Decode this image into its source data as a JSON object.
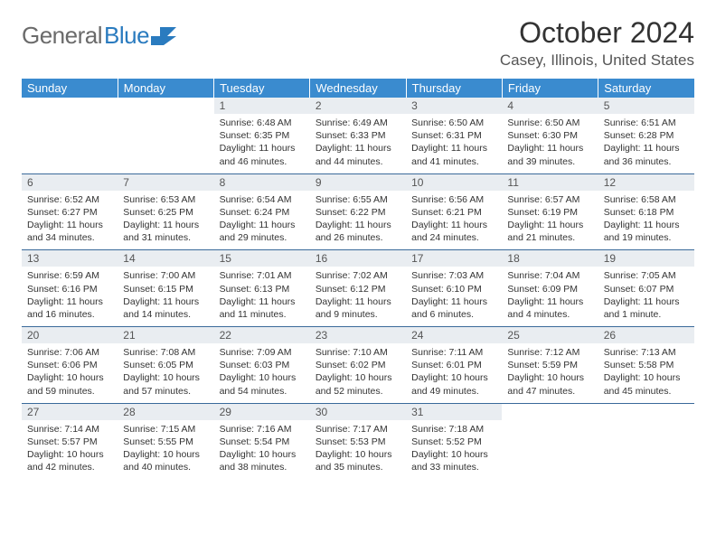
{
  "brand": {
    "name_part1": "General",
    "name_part2": "Blue"
  },
  "title": "October 2024",
  "location": "Casey, Illinois, United States",
  "colors": {
    "header_bg": "#3a8bcf",
    "header_text": "#ffffff",
    "daynum_bg": "#e9edf1",
    "row_border": "#3a6a9a",
    "logo_gray": "#6b6b6b",
    "logo_blue": "#2a7bbf",
    "text": "#333333"
  },
  "day_headers": [
    "Sunday",
    "Monday",
    "Tuesday",
    "Wednesday",
    "Thursday",
    "Friday",
    "Saturday"
  ],
  "weeks": [
    [
      {
        "empty": true
      },
      {
        "empty": true
      },
      {
        "num": "1",
        "sunrise": "Sunrise: 6:48 AM",
        "sunset": "Sunset: 6:35 PM",
        "daylight": "Daylight: 11 hours and 46 minutes."
      },
      {
        "num": "2",
        "sunrise": "Sunrise: 6:49 AM",
        "sunset": "Sunset: 6:33 PM",
        "daylight": "Daylight: 11 hours and 44 minutes."
      },
      {
        "num": "3",
        "sunrise": "Sunrise: 6:50 AM",
        "sunset": "Sunset: 6:31 PM",
        "daylight": "Daylight: 11 hours and 41 minutes."
      },
      {
        "num": "4",
        "sunrise": "Sunrise: 6:50 AM",
        "sunset": "Sunset: 6:30 PM",
        "daylight": "Daylight: 11 hours and 39 minutes."
      },
      {
        "num": "5",
        "sunrise": "Sunrise: 6:51 AM",
        "sunset": "Sunset: 6:28 PM",
        "daylight": "Daylight: 11 hours and 36 minutes."
      }
    ],
    [
      {
        "num": "6",
        "sunrise": "Sunrise: 6:52 AM",
        "sunset": "Sunset: 6:27 PM",
        "daylight": "Daylight: 11 hours and 34 minutes."
      },
      {
        "num": "7",
        "sunrise": "Sunrise: 6:53 AM",
        "sunset": "Sunset: 6:25 PM",
        "daylight": "Daylight: 11 hours and 31 minutes."
      },
      {
        "num": "8",
        "sunrise": "Sunrise: 6:54 AM",
        "sunset": "Sunset: 6:24 PM",
        "daylight": "Daylight: 11 hours and 29 minutes."
      },
      {
        "num": "9",
        "sunrise": "Sunrise: 6:55 AM",
        "sunset": "Sunset: 6:22 PM",
        "daylight": "Daylight: 11 hours and 26 minutes."
      },
      {
        "num": "10",
        "sunrise": "Sunrise: 6:56 AM",
        "sunset": "Sunset: 6:21 PM",
        "daylight": "Daylight: 11 hours and 24 minutes."
      },
      {
        "num": "11",
        "sunrise": "Sunrise: 6:57 AM",
        "sunset": "Sunset: 6:19 PM",
        "daylight": "Daylight: 11 hours and 21 minutes."
      },
      {
        "num": "12",
        "sunrise": "Sunrise: 6:58 AM",
        "sunset": "Sunset: 6:18 PM",
        "daylight": "Daylight: 11 hours and 19 minutes."
      }
    ],
    [
      {
        "num": "13",
        "sunrise": "Sunrise: 6:59 AM",
        "sunset": "Sunset: 6:16 PM",
        "daylight": "Daylight: 11 hours and 16 minutes."
      },
      {
        "num": "14",
        "sunrise": "Sunrise: 7:00 AM",
        "sunset": "Sunset: 6:15 PM",
        "daylight": "Daylight: 11 hours and 14 minutes."
      },
      {
        "num": "15",
        "sunrise": "Sunrise: 7:01 AM",
        "sunset": "Sunset: 6:13 PM",
        "daylight": "Daylight: 11 hours and 11 minutes."
      },
      {
        "num": "16",
        "sunrise": "Sunrise: 7:02 AM",
        "sunset": "Sunset: 6:12 PM",
        "daylight": "Daylight: 11 hours and 9 minutes."
      },
      {
        "num": "17",
        "sunrise": "Sunrise: 7:03 AM",
        "sunset": "Sunset: 6:10 PM",
        "daylight": "Daylight: 11 hours and 6 minutes."
      },
      {
        "num": "18",
        "sunrise": "Sunrise: 7:04 AM",
        "sunset": "Sunset: 6:09 PM",
        "daylight": "Daylight: 11 hours and 4 minutes."
      },
      {
        "num": "19",
        "sunrise": "Sunrise: 7:05 AM",
        "sunset": "Sunset: 6:07 PM",
        "daylight": "Daylight: 11 hours and 1 minute."
      }
    ],
    [
      {
        "num": "20",
        "sunrise": "Sunrise: 7:06 AM",
        "sunset": "Sunset: 6:06 PM",
        "daylight": "Daylight: 10 hours and 59 minutes."
      },
      {
        "num": "21",
        "sunrise": "Sunrise: 7:08 AM",
        "sunset": "Sunset: 6:05 PM",
        "daylight": "Daylight: 10 hours and 57 minutes."
      },
      {
        "num": "22",
        "sunrise": "Sunrise: 7:09 AM",
        "sunset": "Sunset: 6:03 PM",
        "daylight": "Daylight: 10 hours and 54 minutes."
      },
      {
        "num": "23",
        "sunrise": "Sunrise: 7:10 AM",
        "sunset": "Sunset: 6:02 PM",
        "daylight": "Daylight: 10 hours and 52 minutes."
      },
      {
        "num": "24",
        "sunrise": "Sunrise: 7:11 AM",
        "sunset": "Sunset: 6:01 PM",
        "daylight": "Daylight: 10 hours and 49 minutes."
      },
      {
        "num": "25",
        "sunrise": "Sunrise: 7:12 AM",
        "sunset": "Sunset: 5:59 PM",
        "daylight": "Daylight: 10 hours and 47 minutes."
      },
      {
        "num": "26",
        "sunrise": "Sunrise: 7:13 AM",
        "sunset": "Sunset: 5:58 PM",
        "daylight": "Daylight: 10 hours and 45 minutes."
      }
    ],
    [
      {
        "num": "27",
        "sunrise": "Sunrise: 7:14 AM",
        "sunset": "Sunset: 5:57 PM",
        "daylight": "Daylight: 10 hours and 42 minutes."
      },
      {
        "num": "28",
        "sunrise": "Sunrise: 7:15 AM",
        "sunset": "Sunset: 5:55 PM",
        "daylight": "Daylight: 10 hours and 40 minutes."
      },
      {
        "num": "29",
        "sunrise": "Sunrise: 7:16 AM",
        "sunset": "Sunset: 5:54 PM",
        "daylight": "Daylight: 10 hours and 38 minutes."
      },
      {
        "num": "30",
        "sunrise": "Sunrise: 7:17 AM",
        "sunset": "Sunset: 5:53 PM",
        "daylight": "Daylight: 10 hours and 35 minutes."
      },
      {
        "num": "31",
        "sunrise": "Sunrise: 7:18 AM",
        "sunset": "Sunset: 5:52 PM",
        "daylight": "Daylight: 10 hours and 33 minutes."
      },
      {
        "empty": true
      },
      {
        "empty": true
      }
    ]
  ]
}
